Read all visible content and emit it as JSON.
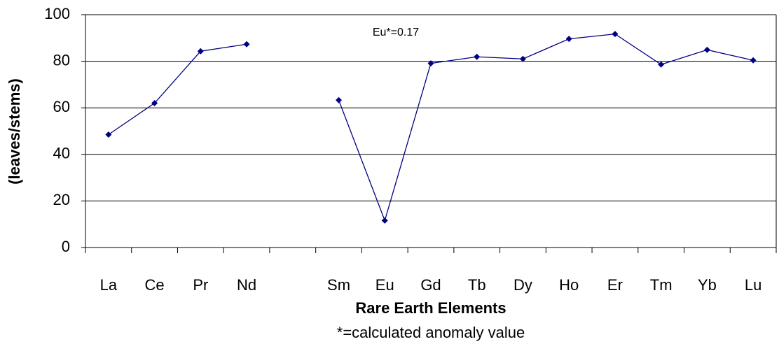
{
  "chart_data": {
    "type": "line",
    "y_label": "(leaves/stems)",
    "x_label": "Rare Earth Elements",
    "footnote": "*=calculated anomaly value",
    "annotation": "Eu*=0.17",
    "categories": [
      "La",
      "Ce",
      "Pr",
      "Nd",
      null,
      "Sm",
      "Eu",
      "Gd",
      "Tb",
      "Dy",
      "Ho",
      "Er",
      "Tm",
      "Yb",
      "Lu"
    ],
    "series": [
      {
        "color": "#000080",
        "values": [
          48.5,
          62,
          84.3,
          87.3,
          null,
          63.3,
          11.6,
          79.1,
          81.9,
          81,
          89.6,
          91.7,
          78.6,
          84.9,
          80.4
        ]
      }
    ],
    "ylim": [
      0,
      100
    ],
    "yticks": [
      0,
      20,
      40,
      60,
      80,
      100
    ],
    "grid": true
  }
}
